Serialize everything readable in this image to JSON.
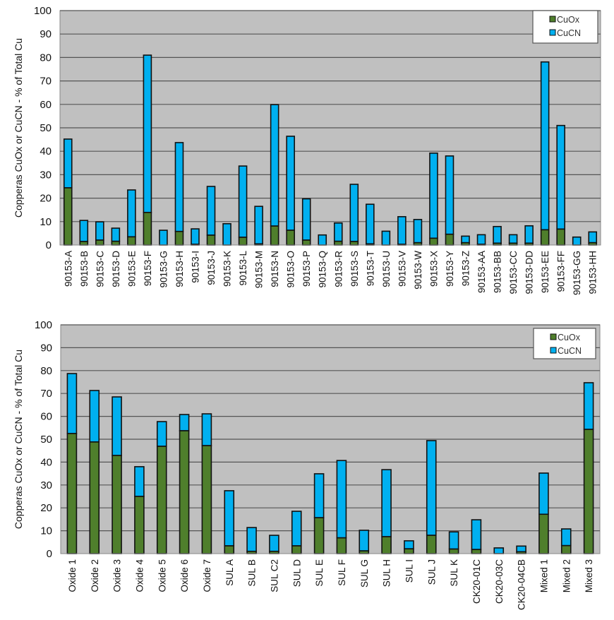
{
  "colors": {
    "plot_bg": "#c0c0c0",
    "grid": "#555555",
    "cuox": "#4f7f2c",
    "cucn": "#00b0f0",
    "outline": "#111111"
  },
  "chart_data": [
    {
      "type": "bar",
      "stacked": true,
      "title": "",
      "xlabel": "",
      "ylabel": "Copperas CuOx or CuCN - % of Total Cu",
      "ylim": [
        0,
        100
      ],
      "yticks": [
        "0",
        "10",
        "20",
        "30",
        "40",
        "50",
        "60",
        "70",
        "80",
        "90",
        "100"
      ],
      "grid": true,
      "legend_position": "top-right",
      "categories": [
        "90153-A",
        "90153-B",
        "90153-C",
        "90153-D",
        "90153-E",
        "90153-F",
        "90153-G",
        "90153-H",
        "90153-I",
        "90153-J",
        "90153-K",
        "90153-L",
        "90153-M",
        "90153-N",
        "90153-O",
        "90153-P",
        "90153-Q",
        "90153-R",
        "90153-S",
        "90153-T",
        "90153-U",
        "90153-V",
        "90153-W",
        "90153-X",
        "90153-Y",
        "90153-Z",
        "90153-AA",
        "90153-BB",
        "90153-CC",
        "90153-DD",
        "90153-EE",
        "90153-FF",
        "90153-GG",
        "90153-HH"
      ],
      "series": [
        {
          "name": "CuOx",
          "values": [
            24.4,
            1.5,
            2.1,
            1.6,
            3.5,
            13.9,
            0.0,
            5.8,
            0.3,
            4.2,
            0.0,
            3.3,
            0.5,
            8.1,
            6.3,
            2.1,
            0.0,
            1.6,
            1.5,
            0.5,
            0.0,
            0.3,
            1.0,
            2.9,
            4.6,
            1.0,
            0.3,
            0.8,
            0.8,
            0.8,
            6.5,
            6.8,
            0.0,
            1.0
          ]
        },
        {
          "name": "CuCN",
          "values": [
            20.8,
            9.0,
            7.8,
            5.6,
            20.0,
            67.1,
            6.3,
            37.9,
            6.6,
            20.8,
            9.1,
            30.4,
            16.0,
            51.8,
            40.1,
            17.6,
            4.3,
            7.8,
            24.4,
            16.9,
            5.9,
            11.8,
            9.9,
            36.3,
            33.4,
            2.8,
            4.1,
            7.1,
            3.6,
            7.4,
            71.6,
            44.2,
            3.4,
            4.6
          ]
        }
      ],
      "legend": [
        "CuOx",
        "CuCN"
      ]
    },
    {
      "type": "bar",
      "stacked": true,
      "title": "",
      "xlabel": "",
      "ylabel": "Copperas CuOx or CuCN - % of Total Cu",
      "ylim": [
        0,
        100
      ],
      "yticks": [
        "0",
        "10",
        "20",
        "30",
        "40",
        "50",
        "60",
        "70",
        "80",
        "90",
        "100"
      ],
      "grid": true,
      "legend_position": "top-right",
      "categories": [
        "Oxide 1",
        "Oxide 2",
        "Oxide 3",
        "Oxide 4",
        "Oxide 5",
        "Oxide 6",
        "Oxide 7",
        "SUL A",
        "SUL B",
        "SUL C2",
        "SUL D",
        "SUL E",
        "SUL F",
        "SUL G",
        "SUL H",
        "SUL I",
        "SUL J",
        "SUL K",
        "CK20-01C",
        "CK20-03C",
        "CK20-04CB",
        "Mixed 1",
        "Mixed 2",
        "Mixed 3"
      ],
      "series": [
        {
          "name": "CuOx",
          "values": [
            52.5,
            48.8,
            42.9,
            25.0,
            46.9,
            53.7,
            47.2,
            3.4,
            1.0,
            1.0,
            3.4,
            15.7,
            6.9,
            1.2,
            7.4,
            2.1,
            8.0,
            2.0,
            1.8,
            0.0,
            0.8,
            17.2,
            3.5,
            54.3
          ]
        },
        {
          "name": "CuCN",
          "values": [
            26.2,
            22.5,
            25.6,
            13.0,
            10.8,
            7.1,
            13.9,
            24.1,
            10.4,
            7.0,
            15.1,
            19.2,
            33.8,
            9.0,
            29.3,
            3.5,
            41.4,
            7.5,
            13.0,
            2.5,
            2.5,
            18.0,
            7.3,
            20.4
          ]
        }
      ],
      "legend": [
        "CuOx",
        "CuCN"
      ]
    }
  ]
}
